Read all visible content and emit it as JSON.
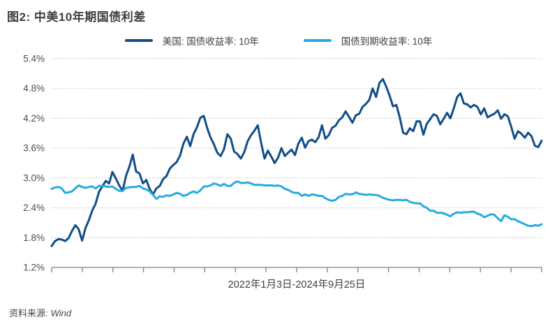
{
  "page": {
    "title": "图2: 中美10年期国债利差",
    "x_axis_label": "2022年1月3日-2024年9月25日",
    "source_label": "资料来源:",
    "source_value": "Wind"
  },
  "colors": {
    "us_line": "#114e87",
    "cn_line": "#27aae1",
    "grid": "#b8b8b8",
    "axis": "#7f7f7f",
    "tick_text": "#4d4d55"
  },
  "chart_data": {
    "type": "line",
    "title": "图2: 中美10年期国债利差",
    "xlabel": "2022年1月3日-2024年9月25日",
    "ylabel": "",
    "ylim": [
      1.2,
      5.4
    ],
    "grid": "horizontal dotted",
    "legend_position": "top center",
    "x_range": [
      "2022-01-03",
      "2024-09-25"
    ],
    "x_tick_count": 17,
    "y_ticks": [
      {
        "v": 5.4,
        "label": "5.4%"
      },
      {
        "v": 4.8,
        "label": "4.8%"
      },
      {
        "v": 4.2,
        "label": "4.2%"
      },
      {
        "v": 3.6,
        "label": "3.6%"
      },
      {
        "v": 3.0,
        "label": "3.0%"
      },
      {
        "v": 2.4,
        "label": "2.4%"
      },
      {
        "v": 1.8,
        "label": "1.8%"
      },
      {
        "v": 1.2,
        "label": "1.2%"
      }
    ],
    "series": [
      {
        "name": "美国: 国债收益率: 10年",
        "color": "#114e87",
        "values": [
          1.63,
          1.73,
          1.77,
          1.76,
          1.73,
          1.79,
          1.93,
          2.05,
          1.97,
          1.74,
          1.99,
          2.15,
          2.34,
          2.48,
          2.72,
          2.83,
          2.94,
          2.89,
          3.12,
          2.99,
          2.85,
          2.74,
          3.04,
          3.23,
          3.47,
          3.13,
          3.09,
          2.89,
          2.96,
          2.78,
          2.67,
          2.79,
          2.84,
          2.98,
          3.04,
          3.19,
          3.26,
          3.32,
          3.45,
          3.69,
          3.83,
          3.64,
          3.88,
          4.02,
          4.21,
          4.25,
          4.01,
          3.82,
          3.68,
          3.51,
          3.44,
          3.58,
          3.88,
          3.79,
          3.53,
          3.48,
          3.39,
          3.52,
          3.74,
          3.86,
          3.95,
          4.06,
          3.7,
          3.39,
          3.55,
          3.43,
          3.3,
          3.41,
          3.6,
          3.44,
          3.51,
          3.57,
          3.46,
          3.69,
          3.81,
          3.61,
          3.74,
          3.77,
          3.72,
          3.82,
          4.06,
          3.79,
          3.86,
          4.01,
          4.05,
          4.16,
          4.22,
          4.34,
          4.23,
          4.11,
          4.26,
          4.29,
          4.43,
          4.49,
          4.57,
          4.8,
          4.63,
          4.91,
          4.99,
          4.84,
          4.66,
          4.44,
          4.47,
          4.22,
          3.91,
          3.88,
          4.0,
          3.94,
          4.14,
          4.14,
          3.87,
          4.09,
          4.18,
          4.28,
          4.25,
          4.08,
          4.19,
          4.31,
          4.2,
          4.4,
          4.63,
          4.7,
          4.5,
          4.48,
          4.42,
          4.47,
          4.43,
          4.28,
          4.4,
          4.22,
          4.26,
          4.29,
          4.36,
          4.19,
          4.28,
          4.24,
          4.03,
          3.79,
          3.94,
          3.89,
          3.81,
          3.91,
          3.84,
          3.65,
          3.62,
          3.75
        ]
      },
      {
        "name": "国债到期收益率: 10年",
        "color": "#27aae1",
        "values": [
          2.78,
          2.81,
          2.82,
          2.79,
          2.7,
          2.71,
          2.73,
          2.79,
          2.85,
          2.82,
          2.8,
          2.82,
          2.83,
          2.79,
          2.84,
          2.84,
          2.83,
          2.82,
          2.83,
          2.78,
          2.74,
          2.74,
          2.8,
          2.81,
          2.82,
          2.82,
          2.84,
          2.79,
          2.77,
          2.73,
          2.66,
          2.58,
          2.63,
          2.62,
          2.65,
          2.64,
          2.67,
          2.7,
          2.68,
          2.64,
          2.66,
          2.7,
          2.73,
          2.7,
          2.75,
          2.83,
          2.83,
          2.85,
          2.89,
          2.87,
          2.84,
          2.88,
          2.84,
          2.84,
          2.9,
          2.93,
          2.9,
          2.9,
          2.91,
          2.89,
          2.86,
          2.86,
          2.86,
          2.85,
          2.85,
          2.85,
          2.84,
          2.85,
          2.83,
          2.78,
          2.76,
          2.72,
          2.7,
          2.7,
          2.64,
          2.67,
          2.64,
          2.67,
          2.66,
          2.64,
          2.64,
          2.59,
          2.56,
          2.54,
          2.56,
          2.62,
          2.64,
          2.68,
          2.67,
          2.67,
          2.71,
          2.68,
          2.67,
          2.66,
          2.67,
          2.66,
          2.66,
          2.64,
          2.6,
          2.58,
          2.56,
          2.55,
          2.56,
          2.56,
          2.55,
          2.56,
          2.52,
          2.5,
          2.49,
          2.49,
          2.43,
          2.4,
          2.34,
          2.34,
          2.3,
          2.3,
          2.29,
          2.26,
          2.23,
          2.28,
          2.31,
          2.3,
          2.31,
          2.31,
          2.32,
          2.32,
          2.28,
          2.26,
          2.21,
          2.24,
          2.27,
          2.26,
          2.19,
          2.13,
          2.25,
          2.22,
          2.17,
          2.17,
          2.13,
          2.1,
          2.07,
          2.04,
          2.03,
          2.05,
          2.04,
          2.07
        ]
      }
    ]
  },
  "legend": {
    "items": [
      {
        "label": "美国: 国债收益率: 10年",
        "color": "#114e87"
      },
      {
        "label": "国债到期收益率: 10年",
        "color": "#27aae1"
      }
    ]
  }
}
